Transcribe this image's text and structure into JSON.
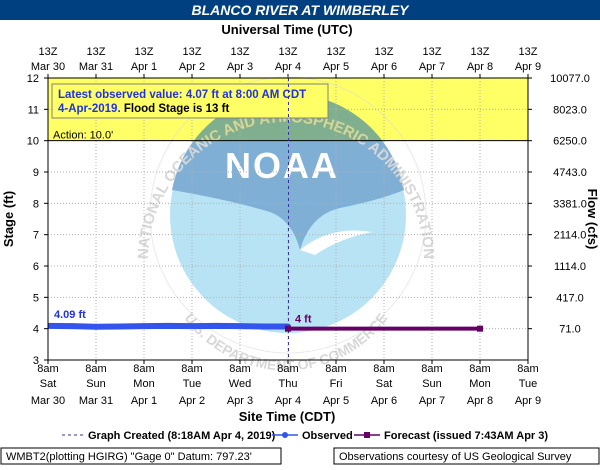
{
  "chart_data": {
    "type": "line",
    "title": "BLANCO RIVER AT WIMBERLEY",
    "top_axis": {
      "label": "Universal Time (UTC)",
      "ticks": [
        {
          "time": "13Z",
          "date": "Mar 30"
        },
        {
          "time": "13Z",
          "date": "Mar 31"
        },
        {
          "time": "13Z",
          "date": "Apr 1"
        },
        {
          "time": "13Z",
          "date": "Apr 2"
        },
        {
          "time": "13Z",
          "date": "Apr 3"
        },
        {
          "time": "13Z",
          "date": "Apr 4"
        },
        {
          "time": "13Z",
          "date": "Apr 5"
        },
        {
          "time": "13Z",
          "date": "Apr 6"
        },
        {
          "time": "13Z",
          "date": "Apr 7"
        },
        {
          "time": "13Z",
          "date": "Apr 8"
        },
        {
          "time": "13Z",
          "date": "Apr 9"
        }
      ]
    },
    "x_axis": {
      "label": "Site Time (CDT)",
      "ticks": [
        {
          "time": "8am",
          "day": "Sat",
          "date": "Mar 30"
        },
        {
          "time": "8am",
          "day": "Sun",
          "date": "Mar 31"
        },
        {
          "time": "8am",
          "day": "Mon",
          "date": "Apr 1"
        },
        {
          "time": "8am",
          "day": "Tue",
          "date": "Apr 2"
        },
        {
          "time": "8am",
          "day": "Wed",
          "date": "Apr 3"
        },
        {
          "time": "8am",
          "day": "Thu",
          "date": "Apr 4"
        },
        {
          "time": "8am",
          "day": "Fri",
          "date": "Apr 5"
        },
        {
          "time": "8am",
          "day": "Sat",
          "date": "Apr 6"
        },
        {
          "time": "8am",
          "day": "Sun",
          "date": "Apr 7"
        },
        {
          "time": "8am",
          "day": "Mon",
          "date": "Apr 8"
        },
        {
          "time": "8am",
          "day": "Tue",
          "date": "Apr 9"
        }
      ],
      "range_days": [
        0,
        10
      ]
    },
    "y_axis": {
      "label": "Stage (ft)",
      "ylim": [
        3,
        12
      ],
      "ticks": [
        3,
        4,
        5,
        6,
        7,
        8,
        9,
        10,
        11,
        12
      ]
    },
    "y2_axis": {
      "label": "Flow (cfs)",
      "ticks": [
        {
          "stage": 4,
          "label": "71.0"
        },
        {
          "stage": 5,
          "label": "417.0"
        },
        {
          "stage": 6,
          "label": "1114.0"
        },
        {
          "stage": 7,
          "label": "2114.0"
        },
        {
          "stage": 8,
          "label": "3381.0"
        },
        {
          "stage": 9,
          "label": "4743.0"
        },
        {
          "stage": 10,
          "label": "6250.0"
        },
        {
          "stage": 11,
          "label": "8023.0"
        },
        {
          "stage": 12,
          "label": "10077.0"
        }
      ]
    },
    "flood_stage": 10,
    "action_label": "Action: 10.0'",
    "flood_zone_color": "#ffff66",
    "grid": true,
    "series": [
      {
        "name": "Observed",
        "color": "#3355ee",
        "x_days": [
          0,
          0.5,
          0.8,
          1.0,
          1.5,
          2.0,
          2.5,
          3.0,
          3.5,
          4.0,
          4.5,
          5.0
        ],
        "values": [
          4.09,
          4.08,
          4.07,
          4.06,
          4.07,
          4.08,
          4.09,
          4.08,
          4.09,
          4.08,
          4.07,
          4.07
        ]
      },
      {
        "name": "Forecast (issued 7:43AM Apr 3)",
        "color": "#660066",
        "x_days": [
          5.0,
          9.0
        ],
        "values": [
          4.0,
          4.0
        ]
      }
    ],
    "graph_created_day": 5.01,
    "labels": {
      "first_obs": "4.09 ft",
      "forecast": "4 ft"
    },
    "info_box": {
      "line1": "Latest observed value: 4.07 ft at 8:00 AM CDT",
      "line2_date": "4-Apr-2019.",
      "line2_flood": "Flood Stage is 13 ft"
    },
    "legend": {
      "graph_created": "Graph Created (8:18AM Apr 4, 2019)",
      "observed": "Observed",
      "forecast": "Forecast (issued 7:43AM Apr 3)"
    },
    "footer": {
      "left": "WMBT2(plotting HGIRG) \"Gage 0\" Datum: 797.23'",
      "right": "Observations courtesy of US Geological Survey"
    },
    "watermark": {
      "text_top": "NATIONAL OCEANIC AND ATMOSPHERIC ADMINISTRATION",
      "text_bottom": "U.S. DEPARTMENT OF COMMERCE",
      "logo": "NOAA"
    }
  }
}
